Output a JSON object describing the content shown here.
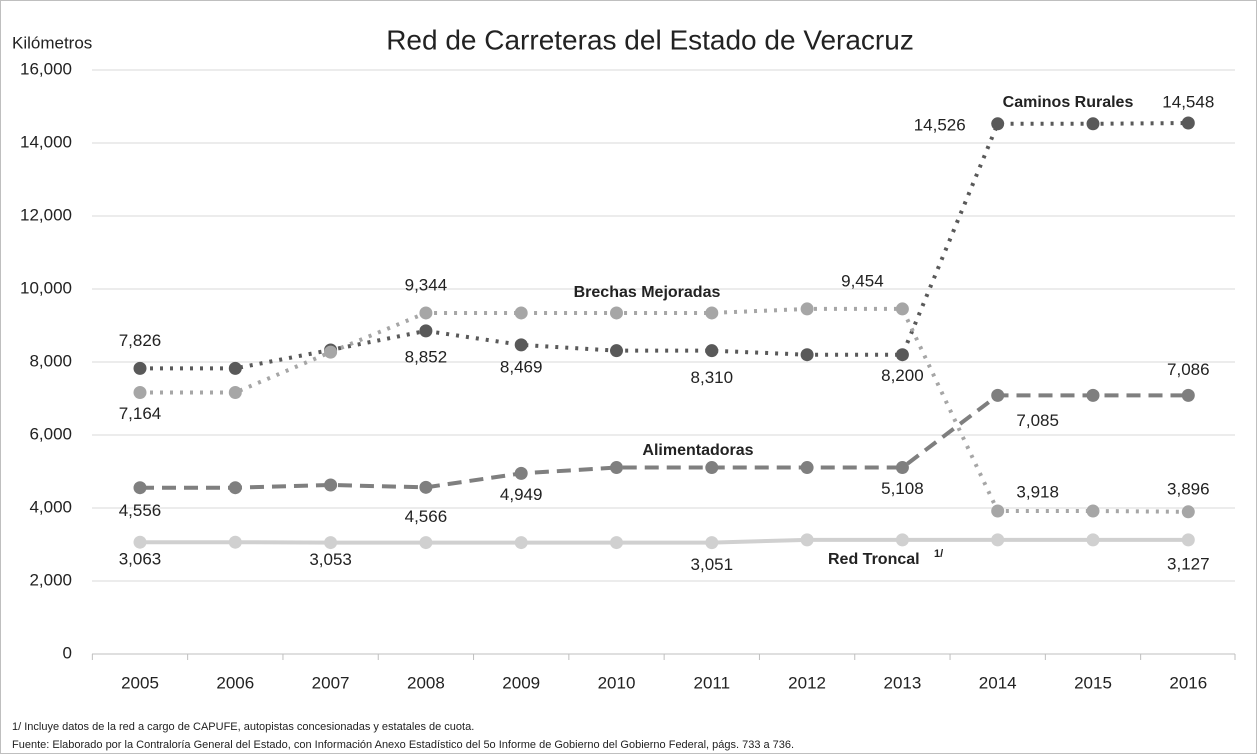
{
  "chart_data": {
    "type": "line",
    "title": "Red de Carreteras del Estado de Veracruz",
    "y_label": "Kilómetros",
    "categories": [
      "2005",
      "2006",
      "2007",
      "2008",
      "2009",
      "2010",
      "2011",
      "2012",
      "2013",
      "2014",
      "2015",
      "2016"
    ],
    "ylim": [
      0,
      16000
    ],
    "yticks": [
      0,
      {
        "value": 2000,
        "label": "2,000"
      },
      {
        "value": 4000,
        "label": "4,000"
      },
      {
        "value": 6000,
        "label": "6,000"
      },
      {
        "value": 8000,
        "label": "8,000"
      },
      {
        "value": 10000,
        "label": "10,000"
      },
      {
        "value": 12000,
        "label": "12,000"
      },
      {
        "value": 14000,
        "label": "14,000"
      },
      {
        "value": 16000,
        "label": "16,000"
      }
    ],
    "grid": true,
    "series": [
      {
        "name": "Caminos Rurales",
        "color": "#595959",
        "dash": "dotted",
        "values": [
          7826,
          7826,
          8330,
          8852,
          8469,
          8310,
          8310,
          8200,
          8200,
          14526,
          14526,
          14548
        ],
        "value_labels": [
          "7,826",
          null,
          null,
          "8,852",
          "8,469",
          null,
          "8,310",
          null,
          "8,200",
          "14,526",
          null,
          "14,548"
        ]
      },
      {
        "name": "Brechas Mejoradas",
        "color": "#a6a6a6",
        "dash": "dotted",
        "values": [
          7164,
          7164,
          8270,
          9344,
          9344,
          9344,
          9344,
          9454,
          9454,
          3918,
          3918,
          3896
        ],
        "value_labels": [
          "7,164",
          null,
          null,
          "9,344",
          null,
          null,
          null,
          null,
          "9,454",
          "3,918",
          null,
          "3,896"
        ]
      },
      {
        "name": "Alimentadoras",
        "color": "#7f7f7f",
        "dash": "dashed",
        "values": [
          4556,
          4556,
          4630,
          4566,
          4949,
          5108,
          5108,
          5108,
          5108,
          7085,
          7085,
          7086
        ],
        "value_labels": [
          "4,556",
          null,
          null,
          "4,566",
          "4,949",
          null,
          null,
          null,
          "5,108",
          "7,085",
          null,
          "7,086"
        ]
      },
      {
        "name": "Red Troncal",
        "footnote_mark": "1/",
        "color": "#d0d0d0",
        "dash": "solid",
        "values": [
          3063,
          3063,
          3053,
          3053,
          3053,
          3053,
          3051,
          3127,
          3127,
          3127,
          3127,
          3127
        ],
        "value_labels": [
          "3,063",
          null,
          "3,053",
          null,
          null,
          null,
          "3,051",
          null,
          null,
          null,
          null,
          "3,127"
        ]
      }
    ],
    "notes": [
      "1/ Incluye datos de la red a cargo de CAPUFE, autopistas concesionadas  y estatales de cuota.",
      "Fuente: Elaborado por la Contraloría General del Estado, con Información Anexo Estadístico del 5o Informe de Gobierno del Gobierno Federal, págs. 733 a 736."
    ]
  }
}
